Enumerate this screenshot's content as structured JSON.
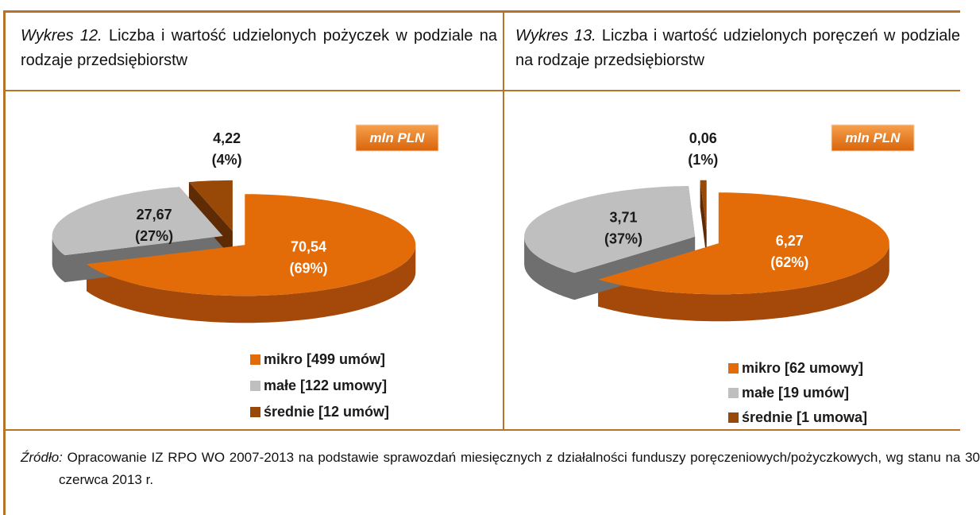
{
  "chart_data": [
    {
      "type": "pie",
      "title_prefix": "Wykres 12.",
      "title": "Liczba i wartość udzielonych pożyczek w podziale na rodzaje przedsiębiorstw",
      "unit_badge": "mln PLN",
      "categories": [
        "mikro [499 umów]",
        "małe [122 umowy]",
        "średnie [12 umów]"
      ],
      "values": [
        70.54,
        27.67,
        4.22
      ],
      "value_labels": [
        "70,54",
        "27,67",
        "4,22"
      ],
      "percents": [
        69,
        27,
        4
      ],
      "percent_labels": [
        "(69%)",
        "(27%)",
        "(4%)"
      ],
      "colors": [
        "#e36c09",
        "#bfbfbf",
        "#984807"
      ],
      "side_colors": [
        "#a4490a",
        "#6f6f6f",
        "#5e2b05"
      ],
      "label_colors": [
        "#ffffff",
        "#1a1a1a",
        "#1a1a1a"
      ]
    },
    {
      "type": "pie",
      "title_prefix": "Wykres 13.",
      "title": "Liczba i wartość udzielonych poręczeń w podziale na rodzaje przedsiębiorstw",
      "unit_badge": "mln PLN",
      "categories": [
        "mikro [62 umowy]",
        "małe [19 umów]",
        "średnie [1 umowa]"
      ],
      "values": [
        6.27,
        3.71,
        0.06
      ],
      "value_labels": [
        "6,27",
        "3,71",
        "0,06"
      ],
      "percents": [
        62,
        37,
        1
      ],
      "percent_labels": [
        "(62%)",
        "(37%)",
        "(1%)"
      ],
      "colors": [
        "#e36c09",
        "#bfbfbf",
        "#984807"
      ],
      "side_colors": [
        "#a4490a",
        "#6f6f6f",
        "#5e2b05"
      ],
      "label_colors": [
        "#ffffff",
        "#1a1a1a",
        "#1a1a1a"
      ]
    }
  ],
  "source": {
    "label": "Źródło:",
    "text": "Opracowanie IZ RPO WO 2007-2013 na podstawie sprawozdań miesięcznych z działalności funduszy poręczeniowych/pożyczkowych, wg stanu na 30 czerwca 2013 r."
  }
}
